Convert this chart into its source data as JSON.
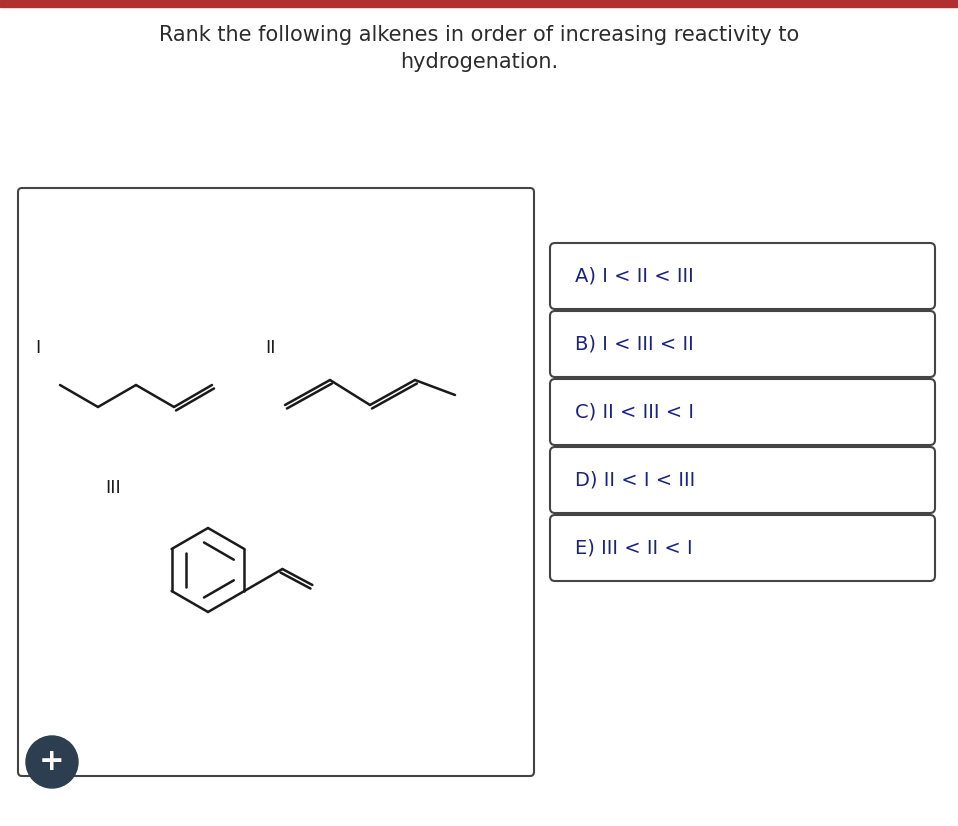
{
  "title_line1": "Rank the following alkenes in order of increasing reactivity to",
  "title_line2": "hydrogenation.",
  "title_color": "#2c2c2c",
  "title_fontsize": 15,
  "bg_color": "#ffffff",
  "top_bar_color": "#b03030",
  "box_border_color": "#444444",
  "options": [
    "A) I < II < III",
    "B) I < III < II",
    "C) II < III < I",
    "D) II < I < III",
    "E) III < II < I"
  ],
  "option_color": "#1a237e",
  "option_fontsize": 14,
  "label_color": "#1a1a1a",
  "label_fontsize": 13,
  "mol_color": "#1a1a1a",
  "mol_lw": 1.8,
  "plus_button_color": "#2c3e50",
  "plus_color": "#ffffff",
  "fig_w": 9.58,
  "fig_h": 8.26,
  "dpi": 100
}
